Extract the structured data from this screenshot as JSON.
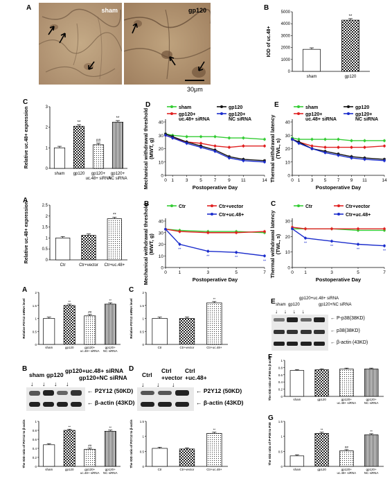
{
  "panel_letters": {
    "p1A": "A",
    "p1B": "B",
    "p1C": "C",
    "p1D": "D",
    "p1E": "E",
    "p2A": "A",
    "p2B": "B",
    "p2C": "C",
    "p3A": "A",
    "p3B": "B",
    "p3C": "C",
    "p3D": "D",
    "p3E": "E",
    "p3F": "F",
    "p3G": "G"
  },
  "micrographs": {
    "left_label": "sham",
    "right_label": "gp120",
    "scale_bar": "30μm"
  },
  "blots": {
    "B_lanes": [
      "sham",
      "gp120",
      "gp120+uc.48+ siRNA",
      "gp120+NC siRNA"
    ],
    "B_bands": [
      "P2Y12 (50KD)",
      "β-actin (43KD)"
    ],
    "D_lanes": [
      "Ctrl",
      "Ctrl +vector",
      "Ctrl +uc.48+"
    ],
    "D_bands": [
      "P2Y12 (50KD)",
      "β-actin (43KD)"
    ],
    "E_lanes": [
      "sham",
      "gp120",
      "gp120+uc.48+ siRNA",
      "gp120+NC siRNA"
    ],
    "E_bands": [
      "P-p38(38KD)",
      "p38(38KD)",
      "β-actin (43KD)"
    ]
  },
  "chart_data": [
    {
      "id": "fig1B",
      "type": "bar",
      "categories": [
        "sham",
        "gp120"
      ],
      "values": [
        1850,
        4300
      ],
      "ylabel": "IOD of uc.48+",
      "ylim": [
        0,
        5000
      ],
      "yticks": [
        0,
        1000,
        2000,
        3000,
        4000,
        5000
      ],
      "annotations": [
        "",
        "**"
      ]
    },
    {
      "id": "fig1C",
      "type": "bar",
      "categories": [
        "sham",
        "gp120",
        "gp120+ uc.48+ siRNA",
        "gp120+ NC siRNA"
      ],
      "values": [
        1.0,
        2.05,
        1.15,
        2.25
      ],
      "ylabel": "Relative uc.48+ expression",
      "ylim": [
        0,
        3
      ],
      "yticks": [
        0,
        1,
        2,
        3
      ],
      "annotations": [
        "",
        "**",
        "##",
        "**"
      ]
    },
    {
      "id": "fig1D",
      "type": "line",
      "x": [
        0,
        1,
        3,
        5,
        7,
        9,
        11,
        14
      ],
      "xlabel": "Postoperative Day",
      "ylabel": "Mechanical withdrawal threshold (MWT, g)",
      "ylim": [
        0,
        40
      ],
      "yticks": [
        0,
        10,
        20,
        30,
        40
      ],
      "legend": [
        "sham",
        "gp120+ uc.48+ siRNA",
        "gp120",
        "gp120+ NC siRNA"
      ],
      "series": [
        {
          "name": "sham",
          "color": "#33cc33",
          "values": [
            31,
            30,
            29,
            29,
            29,
            28,
            28,
            27
          ]
        },
        {
          "name": "gp120+ uc.48+ siRNA",
          "color": "#e02020",
          "values": [
            30,
            28,
            25,
            24,
            22,
            21,
            22,
            22
          ]
        },
        {
          "name": "gp120",
          "color": "#111111",
          "values": [
            31,
            29,
            25,
            22,
            19,
            14,
            12,
            11
          ]
        },
        {
          "name": "gp120+ NC siRNA",
          "color": "#1a2ccc",
          "values": [
            30,
            28,
            24,
            21,
            18,
            13,
            11,
            10
          ]
        }
      ]
    },
    {
      "id": "fig1E",
      "type": "line",
      "x": [
        0,
        1,
        3,
        5,
        7,
        9,
        11,
        14
      ],
      "xlabel": "Postoperative Day",
      "ylabel": "Thermal withdrawal latency (TWL, s)",
      "ylim": [
        0,
        40
      ],
      "yticks": [
        0,
        10,
        20,
        30,
        40
      ],
      "legend": [
        "sham",
        "gp120+ uc.48+ siRNA",
        "gp120",
        "gp120+ NC siRNA"
      ],
      "series": [
        {
          "name": "sham",
          "color": "#33cc33",
          "values": [
            28,
            27,
            27,
            27,
            27,
            26,
            26,
            26
          ]
        },
        {
          "name": "gp120+ uc.48+ siRNA",
          "color": "#e02020",
          "values": [
            27,
            25,
            22,
            21,
            21,
            21,
            21,
            22
          ]
        },
        {
          "name": "gp120",
          "color": "#111111",
          "values": [
            27,
            25,
            20,
            18,
            16,
            14,
            13,
            12
          ]
        },
        {
          "name": "gp120+ NC siRNA",
          "color": "#1a2ccc",
          "values": [
            27,
            24,
            20,
            17,
            15,
            13,
            12,
            11
          ]
        }
      ]
    },
    {
      "id": "fig2A",
      "type": "bar",
      "categories": [
        "Ctr",
        "Ctr+vector",
        "Ctr+uc.48+"
      ],
      "values": [
        1.0,
        1.12,
        1.88
      ],
      "ylabel": "Relative uc.48+ expression",
      "ylim": [
        0,
        2.5
      ],
      "yticks": [
        0,
        0.5,
        1.0,
        1.5,
        2.0,
        2.5
      ],
      "annotations": [
        "",
        "",
        "**"
      ]
    },
    {
      "id": "fig2B",
      "type": "line",
      "x": [
        0,
        1,
        3,
        5,
        7
      ],
      "xlabel": "Postoperative Day",
      "ylabel": "Mechanical withdrawal threshold (MWT, g)",
      "ylim": [
        0,
        40
      ],
      "yticks": [
        0,
        10,
        20,
        30,
        40
      ],
      "legend": [
        "Ctr",
        "Ctr+vector",
        "Ctr+uc.48+"
      ],
      "series": [
        {
          "name": "Ctr",
          "color": "#33cc33",
          "values": [
            33,
            32,
            31,
            31,
            30
          ]
        },
        {
          "name": "Ctr+vector",
          "color": "#e02020",
          "values": [
            33,
            31,
            30,
            30,
            31
          ]
        },
        {
          "name": "Ctr+uc.48+",
          "color": "#1a2ccc",
          "values": [
            33,
            20,
            14,
            13,
            10
          ]
        }
      ]
    },
    {
      "id": "fig2C",
      "type": "line",
      "x": [
        0,
        1,
        3,
        5,
        7
      ],
      "xlabel": "Postoperative Day",
      "ylabel": "Thermal withdrawal latency (TWL, s)",
      "ylim": [
        0,
        30
      ],
      "yticks": [
        0,
        10,
        20,
        30
      ],
      "legend": [
        "Ctr",
        "Ctr+vector",
        "Ctr+uc.48+"
      ],
      "series": [
        {
          "name": "Ctr",
          "color": "#33cc33",
          "values": [
            25,
            25,
            25,
            24,
            24
          ]
        },
        {
          "name": "Ctr+vector",
          "color": "#e02020",
          "values": [
            26,
            25,
            25,
            25,
            25
          ]
        },
        {
          "name": "Ctr+uc.48+",
          "color": "#1a2ccc",
          "values": [
            25,
            19,
            17,
            15,
            14
          ]
        }
      ]
    },
    {
      "id": "fig3A",
      "type": "bar",
      "categories": [
        "sham",
        "gp120",
        "gp120+ uc.48+ siRNA",
        "gp120+ NC siRNA"
      ],
      "values": [
        1.0,
        1.5,
        1.1,
        1.55
      ],
      "ylabel": "Relative P2Y12 mRNA level",
      "ylim": [
        0,
        2.0
      ],
      "yticks": [
        0,
        0.5,
        1.0,
        1.5,
        2.0
      ],
      "annotations": [
        "",
        "**",
        "##",
        "**"
      ]
    },
    {
      "id": "fig3C",
      "type": "bar",
      "categories": [
        "Ctr",
        "Ctr+vector",
        "Ctr+uc.48+"
      ],
      "values": [
        1.0,
        1.0,
        1.6
      ],
      "ylabel": "Relative P2Y12 mRNA level",
      "ylim": [
        0,
        2.0
      ],
      "yticks": [
        0,
        0.5,
        1.0,
        1.5,
        2.0
      ],
      "annotations": [
        "",
        "",
        "**"
      ]
    },
    {
      "id": "fig3Bq",
      "type": "bar",
      "categories": [
        "sham",
        "gp120",
        "gp120+ uc.48+ siRNA",
        "gp120+ NC siRNA"
      ],
      "values": [
        0.48,
        0.8,
        0.38,
        0.78
      ],
      "ylabel": "The IOD ratio of P2Y12 to β-actin",
      "ylim": [
        0,
        1.0
      ],
      "yticks": [
        0,
        0.2,
        0.4,
        0.6,
        0.8,
        1.0
      ],
      "annotations": [
        "",
        "**",
        "##",
        "**"
      ]
    },
    {
      "id": "fig3Dq",
      "type": "bar",
      "categories": [
        "Ctr",
        "Ctr+vector",
        "Ctr+uc.48+"
      ],
      "values": [
        0.6,
        0.58,
        1.1
      ],
      "ylabel": "The IOD ratio of P2Y12 to β-actin",
      "ylim": [
        0,
        1.5
      ],
      "yticks": [
        0,
        0.5,
        1.0,
        1.5
      ],
      "annotations": [
        "",
        "",
        "**"
      ]
    },
    {
      "id": "fig3F",
      "type": "bar",
      "categories": [
        "sham",
        "gp120",
        "gp120+ uc.48+ siRNA",
        "gp120+ NC siRNA"
      ],
      "values": [
        0.72,
        0.74,
        0.76,
        0.76
      ],
      "ylabel": "The IOD ratio of P38 to β-actin",
      "ylim": [
        0,
        1.0
      ],
      "yticks": [
        0,
        0.2,
        0.4,
        0.6,
        0.8,
        1.0
      ],
      "annotations": [
        "",
        "",
        "",
        ""
      ]
    },
    {
      "id": "fig3G",
      "type": "bar",
      "categories": [
        "sham",
        "gp120",
        "gp120+ uc.48+ siRNA",
        "gp120+ NC siRNA"
      ],
      "values": [
        0.35,
        1.1,
        0.52,
        1.05
      ],
      "ylabel": "The IOD ratio of P-P38 to P38",
      "ylim": [
        0,
        1.5
      ],
      "yticks": [
        0,
        0.5,
        1.0,
        1.5
      ],
      "annotations": [
        "",
        "**",
        "##",
        "**"
      ]
    }
  ]
}
